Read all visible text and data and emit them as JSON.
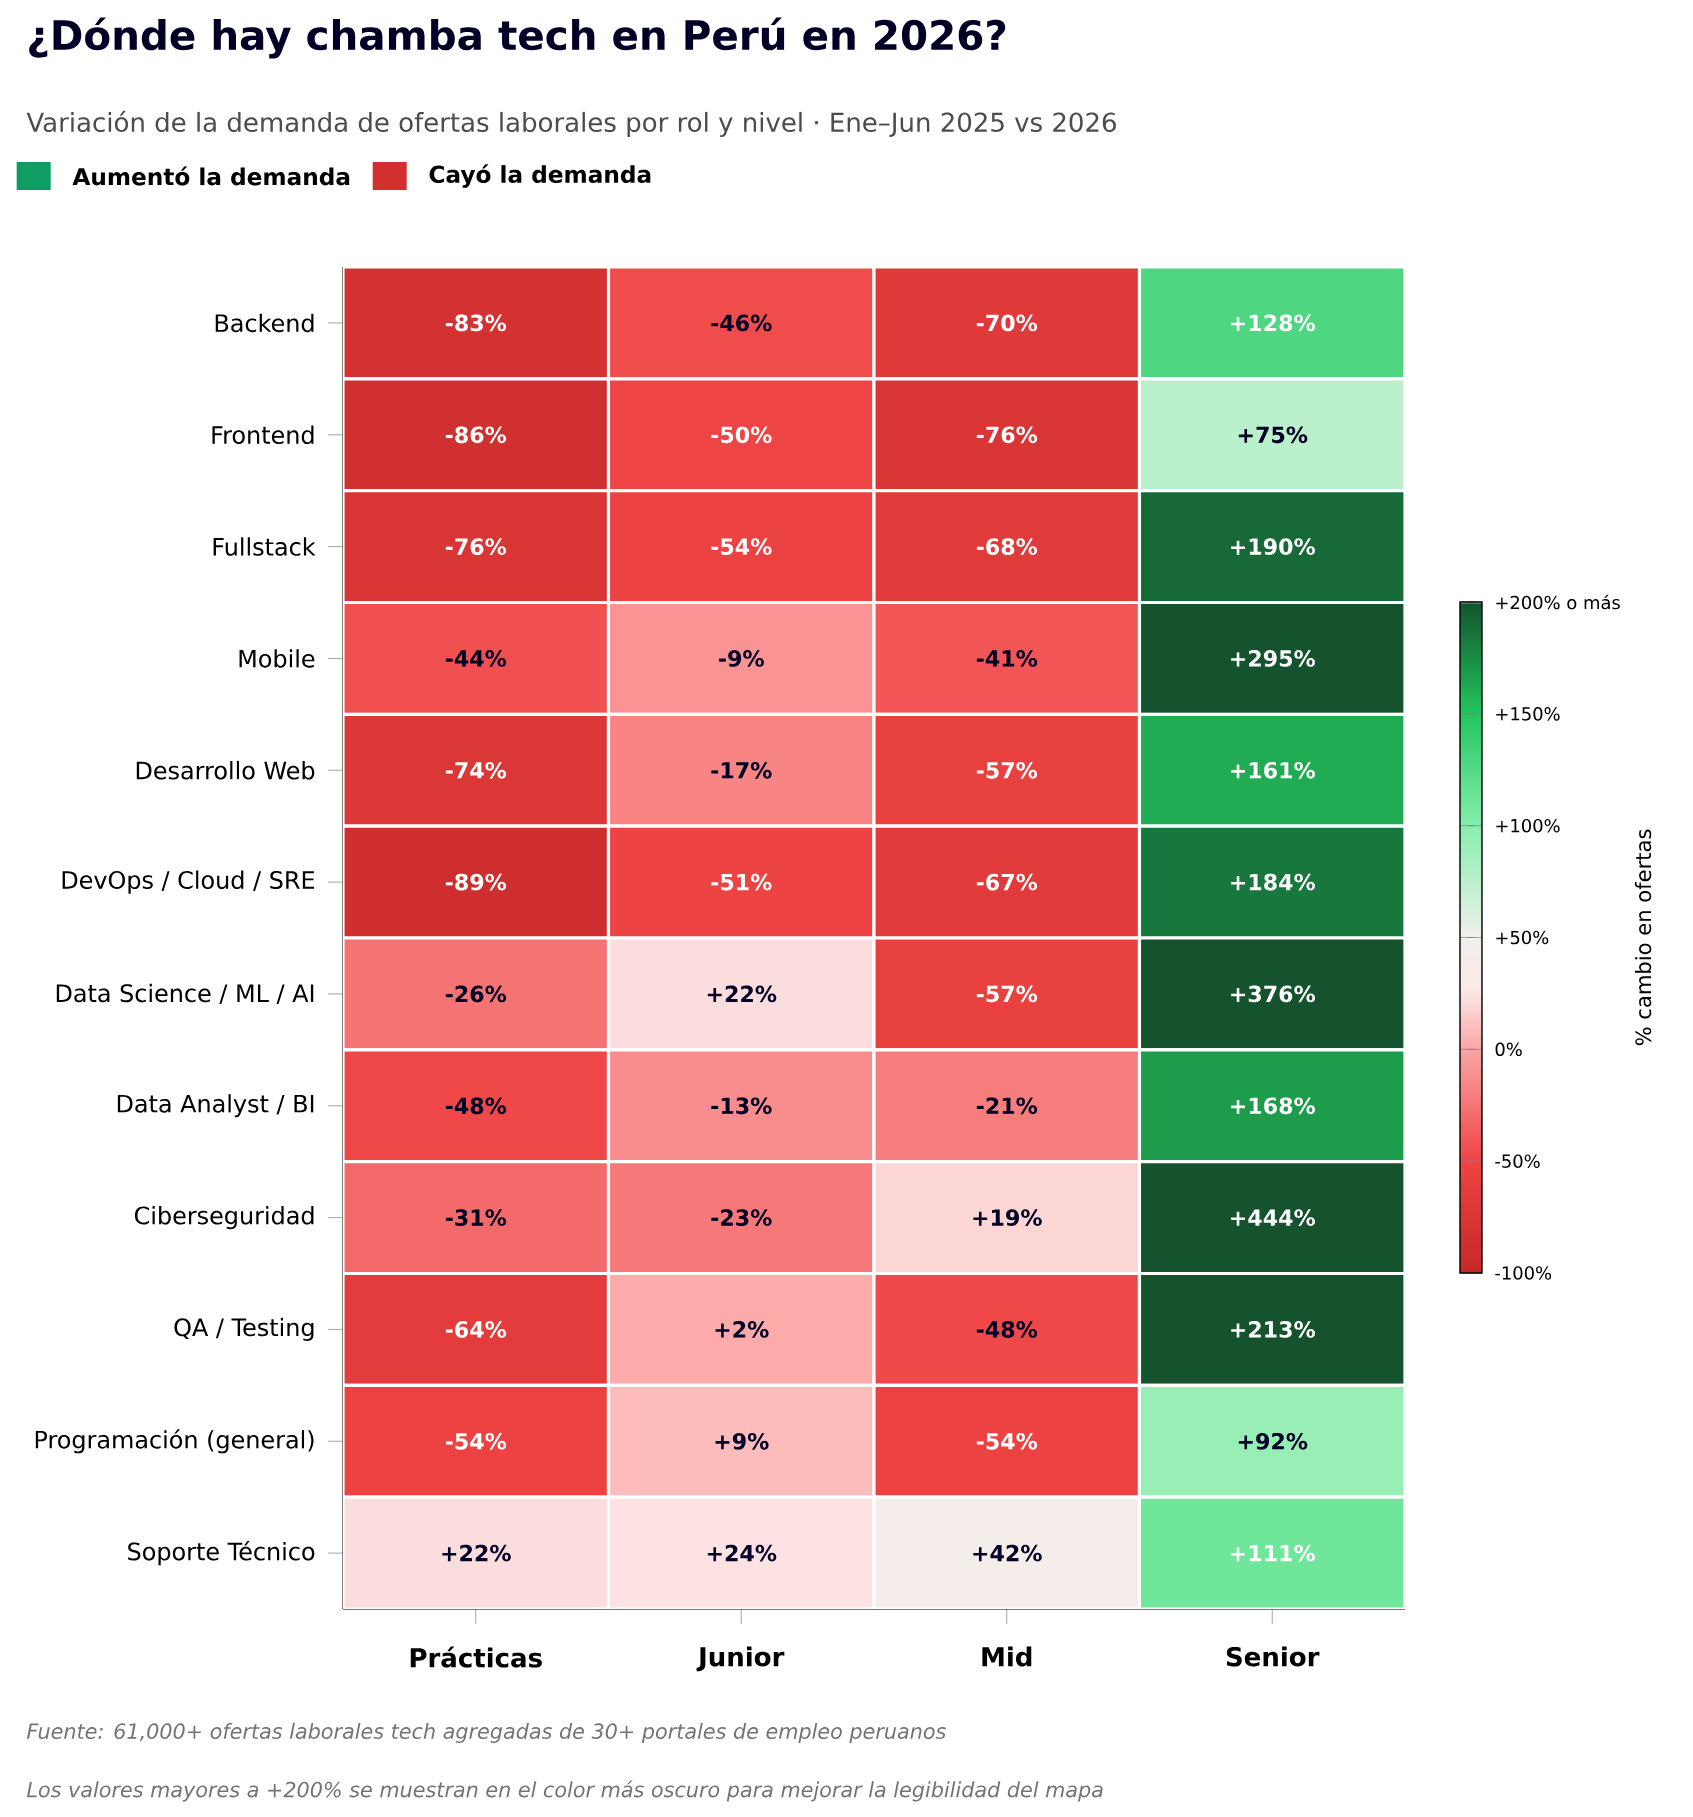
{
  "chart_data": {
    "type": "heatmap",
    "title": "¿Dónde hay chamba tech en Perú en 2026?",
    "subtitle": "Variación de la demanda de ofertas laborales por rol y nivel · Ene–Jun 2025 vs 2026",
    "categories": [
      "Prácticas",
      "Junior",
      "Mid",
      "Senior"
    ],
    "y_categories": [
      "Backend",
      "Frontend",
      "Fullstack",
      "Mobile",
      "Desarrollo Web",
      "DevOps / Cloud / SRE",
      "Data Science / ML / AI",
      "Data Analyst / BI",
      "Ciberseguridad",
      "QA / Testing",
      "Programación (general)",
      "Soporte Técnico"
    ],
    "cells": [
      [
        -83,
        -46,
        -70,
        128
      ],
      [
        -86,
        -50,
        -76,
        75
      ],
      [
        -76,
        -54,
        -68,
        190
      ],
      [
        -44,
        -9,
        -41,
        295
      ],
      [
        -74,
        -17,
        -57,
        161
      ],
      [
        -89,
        -51,
        -67,
        184
      ],
      [
        -26,
        22,
        -57,
        376
      ],
      [
        -48,
        -13,
        -21,
        168
      ],
      [
        -31,
        -23,
        19,
        444
      ],
      [
        -64,
        2,
        -48,
        213
      ],
      [
        -54,
        9,
        -54,
        92
      ],
      [
        22,
        24,
        42,
        111
      ]
    ],
    "cell_labels": [
      [
        "-83%",
        "-46%",
        "-70%",
        "+128%"
      ],
      [
        "-86%",
        "-50%",
        "-76%",
        "+75%"
      ],
      [
        "-76%",
        "-54%",
        "-68%",
        "+190%"
      ],
      [
        "-44%",
        "-9%",
        "-41%",
        "+295%"
      ],
      [
        "-74%",
        "-17%",
        "-57%",
        "+161%"
      ],
      [
        "-89%",
        "-51%",
        "-67%",
        "+184%"
      ],
      [
        "-26%",
        "+22%",
        "-57%",
        "+376%"
      ],
      [
        "-48%",
        "-13%",
        "-21%",
        "+168%"
      ],
      [
        "-31%",
        "-23%",
        "+19%",
        "+444%"
      ],
      [
        "-64%",
        "+2%",
        "-48%",
        "+213%"
      ],
      [
        "-54%",
        "+9%",
        "-54%",
        "+92%"
      ],
      [
        "+22%",
        "+24%",
        "+42%",
        "+111%"
      ]
    ],
    "clim": [
      -100,
      200
    ],
    "cticks": [
      {
        "value": -100,
        "label": "-100%"
      },
      {
        "value": -50,
        "label": "-50%"
      },
      {
        "value": 0,
        "label": "0%"
      },
      {
        "value": 50,
        "label": "+50%"
      },
      {
        "value": 100,
        "label": "+100%"
      },
      {
        "value": 150,
        "label": "+150%"
      },
      {
        "value": 200,
        "label": "+200% o más"
      }
    ],
    "clabel": "% cambio en ofertas",
    "annotations": [
      "Aumentó la demanda",
      "Cayó la demanda",
      "Fuente: 61,000+ ofertas laborales tech agregadas de 30+ portales de empleo peruanos",
      "Los valores mayores a +200% se muestran en el color más oscuro para mejorar la legibilidad del mapa"
    ]
  }
}
